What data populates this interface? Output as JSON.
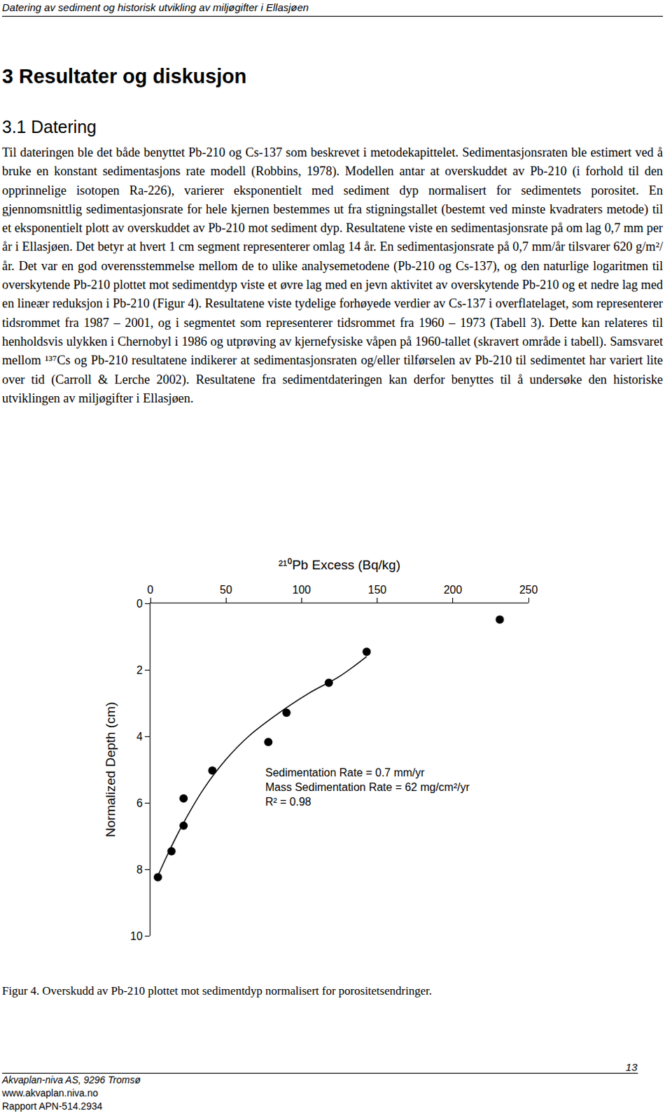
{
  "header": "Datering av sediment og historisk utvikling av miljøgifter i Ellasjøen",
  "heading": "3 Resultater og diskusjon",
  "subheading": "3.1 Datering",
  "paragraph": "Til dateringen ble det både benyttet Pb-210 og Cs-137 som beskrevet i metodekapittelet. Sedimentasjonsraten ble estimert ved å bruke en konstant sedimentasjons rate modell (Robbins, 1978). Modellen antar at overskuddet av Pb-210 (i forhold til den opprinnelige isotopen Ra-226), varierer eksponentielt med sediment dyp normalisert for sedimentets porositet. En gjennomsnittlig sedimentasjonsrate for hele kjernen bestemmes ut fra stigningstallet (bestemt ved minste kvadraters metode) til et eksponentielt plott av overskuddet av Pb-210 mot sediment dyp. Resultatene viste en sedimentasjonsrate på om lag 0,7 mm per år i Ellasjøen. Det betyr at hvert 1 cm segment representerer omlag 14 år. En sedimentasjonsrate på 0,7 mm/år tilsvarer 620 g/m²/år. Det var en god overensstemmelse mellom de to ulike analysemetodene (Pb-210 og Cs-137), og den naturlige logaritmen til overskytende Pb-210 plottet mot sedimentdyp viste et øvre lag med en jevn aktivitet av overskytende Pb-210 og et nedre lag med en lineær reduksjon i Pb-210 (Figur 4). Resultatene viste tydelige forhøyede verdier av Cs-137 i overflatelaget, som representerer tidsrommet fra 1987 – 2001, og i segmentet som representerer tidsrommet fra 1960 – 1973 (Tabell 3). Dette kan relateres til henholdsvis ulykken i Chernobyl i 1986 og utprøving av kjernefysiske våpen på 1960-tallet (skravert område i tabell). Samsvaret mellom ¹³⁷Cs og Pb-210 resultatene indikerer at sedimentasjonsraten og/eller tilførselen av Pb-210 til sedimentet har variert lite over tid (Carroll & Lerche 2002). Resultatene fra sedimentdateringen kan derfor benyttes til å undersøke den historiske utviklingen av miljøgifter i Ellasjøen.",
  "chart_data": {
    "type": "scatter",
    "x_label": "²¹⁰Pb Excess (Bq/kg)",
    "y_label": "Normalized Depth (cm)",
    "xlim": [
      0,
      250
    ],
    "xticks": [
      0,
      50,
      100,
      150,
      200,
      250
    ],
    "ylim": [
      10,
      0
    ],
    "yticks": [
      0,
      2,
      4,
      6,
      8,
      10
    ],
    "grid": false,
    "series": [
      {
        "type": "scatter",
        "marker": "circle",
        "color": "#000000",
        "x": [
          231,
          143,
          118,
          90,
          78,
          41,
          22,
          22,
          14,
          5
        ],
        "values": [
          0.49,
          1.46,
          2.39,
          3.29,
          4.17,
          5.03,
          5.87,
          6.69,
          7.46,
          8.24
        ]
      },
      {
        "type": "line",
        "line_style": "solid",
        "color": "#000000",
        "x": [
          5,
          12,
          22,
          35,
          50,
          65,
          85,
          105,
          125,
          143
        ],
        "values": [
          8.2,
          7.5,
          6.6,
          5.6,
          4.7,
          4.0,
          3.3,
          2.7,
          2.2,
          1.6
        ]
      }
    ],
    "annotations": [
      "Sedimentation Rate = 0.7 mm/yr",
      "Mass Sedimentation Rate = 62 mg/cm²/yr",
      "R² = 0.98"
    ]
  },
  "caption": "Figur 4. Overskudd av Pb-210 plottet mot sedimentdyp normalisert for porositetsendringer.",
  "footer": {
    "lines": [
      "Akvaplan-niva AS, 9296 Tromsø",
      "www.akvaplan.niva.no",
      "Rapport APN-514.2934"
    ],
    "page": "13"
  }
}
